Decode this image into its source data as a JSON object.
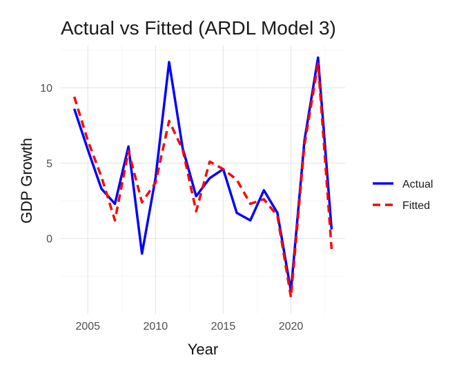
{
  "chart_data": {
    "type": "line",
    "title": "Actual vs Fitted (ARDL Model 3)",
    "xlabel": "Year",
    "ylabel": "GDP Growth",
    "x": [
      2004,
      2005,
      2006,
      2007,
      2008,
      2009,
      2010,
      2011,
      2012,
      2013,
      2014,
      2015,
      2016,
      2017,
      2018,
      2019,
      2020,
      2021,
      2022,
      2023
    ],
    "series": [
      {
        "name": "Actual",
        "color": "#0000FF",
        "line_style": "solid",
        "values": [
          8.6,
          5.9,
          3.3,
          2.3,
          6.1,
          -1.0,
          4.0,
          11.7,
          6.0,
          2.8,
          4.0,
          4.6,
          1.7,
          1.2,
          3.2,
          1.7,
          -3.5,
          6.5,
          12.0,
          0.6
        ]
      },
      {
        "name": "Fitted",
        "color": "#FF0000",
        "line_style": "dashed",
        "values": [
          9.4,
          6.5,
          4.1,
          1.2,
          5.8,
          2.4,
          3.7,
          7.8,
          5.9,
          1.8,
          5.1,
          4.6,
          3.9,
          2.3,
          2.6,
          1.5,
          -3.9,
          6.2,
          11.6,
          -0.7
        ]
      }
    ],
    "x_ticks": [
      "2005",
      "2010",
      "2015",
      "2020"
    ],
    "y_ticks": [
      "0",
      "5",
      "10"
    ],
    "xlim": [
      2003.0,
      2024.0
    ],
    "ylim": [
      -5.0,
      12.8
    ],
    "grid": true,
    "legend_position": "right"
  }
}
